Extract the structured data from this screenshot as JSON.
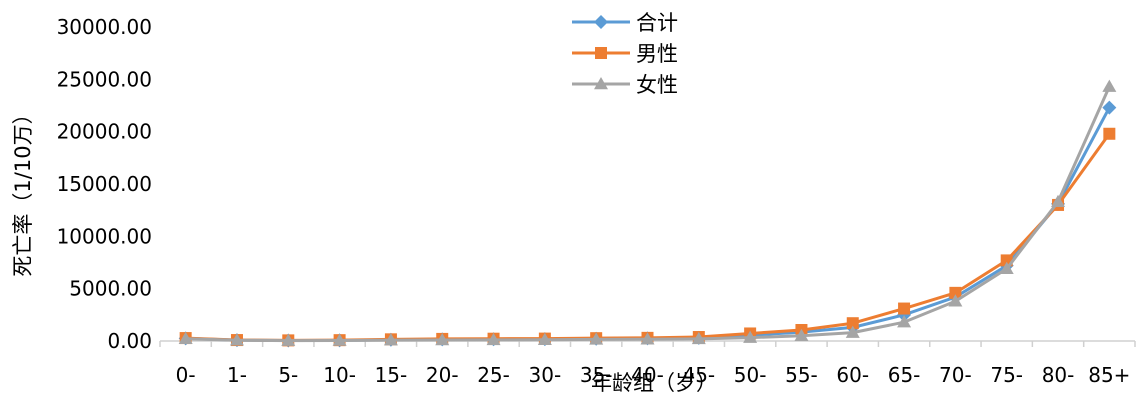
{
  "chart_data": {
    "type": "line",
    "title": "",
    "xlabel": "年龄组（岁）",
    "ylabel": "死亡率（1/10万）",
    "ylim": [
      0,
      30000
    ],
    "yticks": [
      "0.00",
      "5000.00",
      "10000.00",
      "15000.00",
      "20000.00",
      "25000.00",
      "30000.00"
    ],
    "categories": [
      "0-",
      "1-",
      "5-",
      "10-",
      "15-",
      "20-",
      "25-",
      "30-",
      "35-",
      "40-",
      "45-",
      "50-",
      "55-",
      "60-",
      "65-",
      "70-",
      "75-",
      "80-",
      "85+"
    ],
    "grid": false,
    "legend_position": "top-center",
    "series": [
      {
        "name": "合计",
        "color": "#5B9BD5",
        "marker": "diamond",
        "values": [
          250,
          80,
          50,
          60,
          120,
          150,
          170,
          180,
          220,
          250,
          300,
          550,
          850,
          1300,
          2500,
          4200,
          7200,
          13100,
          22300
        ]
      },
      {
        "name": "男性",
        "color": "#ED7D31",
        "marker": "square",
        "values": [
          280,
          90,
          60,
          80,
          160,
          200,
          220,
          230,
          270,
          300,
          380,
          720,
          1050,
          1700,
          3100,
          4600,
          7700,
          13000,
          19800
        ]
      },
      {
        "name": "女性",
        "color": "#A5A5A5",
        "marker": "triangle",
        "values": [
          220,
          70,
          40,
          50,
          80,
          100,
          110,
          120,
          150,
          170,
          200,
          320,
          500,
          800,
          1800,
          3800,
          6900,
          13300,
          24300
        ]
      }
    ]
  }
}
